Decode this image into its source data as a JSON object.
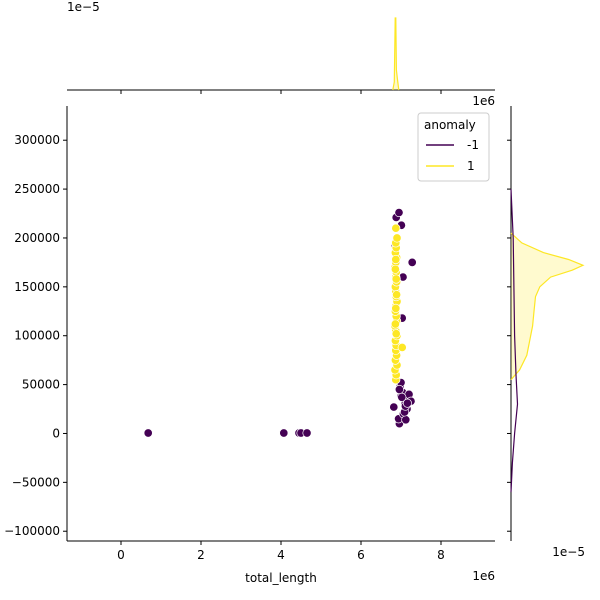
{
  "chart_data": {
    "type": "scatter",
    "xlabel": "total_length",
    "ylabel": "",
    "x_offset_label": "1e6",
    "y_offset_label": "",
    "top_marginal_offset_label": "1e−5",
    "right_marginal_offset_label": "1e−5",
    "xlim": [
      -1350000,
      9350000
    ],
    "ylim": [
      -110000,
      335000
    ],
    "x_ticks": [
      0,
      2000000,
      4000000,
      6000000,
      8000000
    ],
    "x_tick_labels": [
      "0",
      "2",
      "4",
      "6",
      "8"
    ],
    "y_ticks": [
      -100000,
      -50000,
      0,
      50000,
      100000,
      150000,
      200000,
      250000,
      300000
    ],
    "y_tick_labels": [
      "−100000",
      "−50000",
      "0",
      "50000",
      "100000",
      "150000",
      "200000",
      "250000",
      "300000"
    ],
    "grid": false,
    "legend": {
      "title": "anomaly",
      "placement": "upper right",
      "entries": [
        {
          "label": "-1",
          "color": "#440154"
        },
        {
          "label": "1",
          "color": "#fde725"
        }
      ]
    },
    "series": [
      {
        "name": "-1",
        "color": "#440154",
        "x": [
          680000,
          4070000,
          4450000,
          4500000,
          4650000,
          6820000,
          6860000,
          6880000,
          6950000,
          7010000,
          7050000,
          6960000,
          7280000,
          6940000,
          7000000,
          7040000,
          7080000,
          7100000,
          7150000,
          7200000,
          7250000,
          6980000,
          7060000,
          7120000,
          7000000,
          7090000,
          6960000,
          7110000,
          7020000,
          7160000,
          6900000,
          7030000
        ],
        "y": [
          500,
          500,
          500,
          500,
          500,
          27000,
          192000,
          221000,
          226000,
          213000,
          160000,
          10000,
          175000,
          15000,
          38000,
          42000,
          35000,
          30000,
          25000,
          40000,
          33000,
          48000,
          20000,
          14000,
          52000,
          22000,
          45000,
          28000,
          37000,
          31000,
          70000,
          118000
        ]
      },
      {
        "name": "1",
        "color": "#fde725",
        "x": [
          6870000,
          6880000,
          6850000,
          6900000,
          6860000,
          6890000,
          6870000,
          6880000,
          6860000,
          6900000,
          6870000,
          6850000,
          6890000,
          6880000,
          6860000,
          6870000,
          6900000,
          6880000,
          6870000,
          6860000,
          6890000,
          6870000,
          6880000,
          6850000,
          6870000,
          6890000,
          6860000,
          6880000,
          6870000,
          6900000,
          6870000,
          6880000,
          6860000,
          6870000,
          6890000,
          6880000,
          6860000,
          6870000,
          7030000
        ],
        "y": [
          55000,
          60000,
          65000,
          70000,
          75000,
          80000,
          85000,
          90000,
          95000,
          100000,
          105000,
          110000,
          115000,
          120000,
          125000,
          130000,
          135000,
          140000,
          145000,
          150000,
          155000,
          160000,
          165000,
          170000,
          175000,
          180000,
          185000,
          190000,
          195000,
          200000,
          210000,
          102000,
          112000,
          128000,
          142000,
          158000,
          168000,
          178000,
          88000
        ]
      }
    ],
    "top_marginal": {
      "type": "kde",
      "series": [
        {
          "name": "1",
          "color": "#fde725",
          "peak_x": 6870000,
          "peak_density": 1.8e-05
        }
      ]
    },
    "right_marginal": {
      "type": "kde",
      "series": [
        {
          "name": "1",
          "color": "#fde725",
          "y": [
            55000,
            65000,
            80000,
            95000,
            110000,
            125000,
            140000,
            150000,
            160000,
            167000,
            172000,
            178000,
            185000,
            195000,
            205000
          ],
          "density": [
            0.0,
            0.12,
            0.22,
            0.26,
            0.3,
            0.32,
            0.34,
            0.4,
            0.55,
            0.85,
            1.0,
            0.8,
            0.45,
            0.15,
            0.0
          ]
        },
        {
          "name": "-1",
          "color": "#440154",
          "y": [
            -60000,
            -30000,
            0,
            30000,
            60000,
            100000,
            150000,
            200000,
            250000
          ],
          "density": [
            0.0,
            0.02,
            0.05,
            0.09,
            0.07,
            0.05,
            0.04,
            0.03,
            0.0
          ]
        }
      ]
    }
  }
}
